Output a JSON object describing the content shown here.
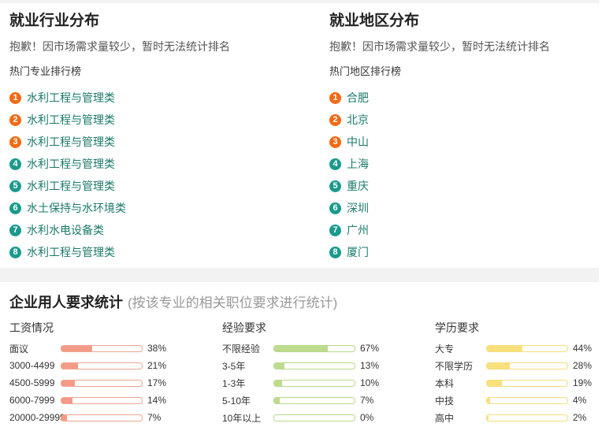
{
  "industry": {
    "title": "就业行业分布",
    "note": "抱歉！因市场需求量较少，暂时无法统计排名",
    "rank_title": "热门专业排行榜",
    "items": [
      {
        "num": "1",
        "label": "水利工程与管理类"
      },
      {
        "num": "2",
        "label": "水利工程与管理类"
      },
      {
        "num": "3",
        "label": "水利工程与管理类"
      },
      {
        "num": "4",
        "label": "水利工程与管理类"
      },
      {
        "num": "5",
        "label": "水利工程与管理类"
      },
      {
        "num": "6",
        "label": "水土保持与水环境类"
      },
      {
        "num": "7",
        "label": "水利水电设备类"
      },
      {
        "num": "8",
        "label": "水利工程与管理类"
      }
    ]
  },
  "region": {
    "title": "就业地区分布",
    "note": "抱歉！因市场需求量较少，暂时无法统计排名",
    "rank_title": "热门地区排行榜",
    "items": [
      {
        "num": "1",
        "label": "合肥"
      },
      {
        "num": "2",
        "label": "北京"
      },
      {
        "num": "3",
        "label": "中山"
      },
      {
        "num": "4",
        "label": "上海"
      },
      {
        "num": "5",
        "label": "重庆"
      },
      {
        "num": "6",
        "label": "深圳"
      },
      {
        "num": "7",
        "label": "广州"
      },
      {
        "num": "8",
        "label": "厦门"
      }
    ]
  },
  "colors": {
    "hot_rank": "#f26a13",
    "normal_rank": "#1a9a8c",
    "link": "#1b7a6a"
  },
  "requirements": {
    "title": "企业用人要求统计",
    "subtitle": "(按该专业的相关职位要求进行统计)",
    "salary": {
      "title": "工资情况",
      "rows": [
        {
          "label": "面议",
          "pct": "38%",
          "value": 38
        },
        {
          "label": "3000-4499",
          "pct": "21%",
          "value": 21
        },
        {
          "label": "4500-5999",
          "pct": "17%",
          "value": 17
        },
        {
          "label": "6000-7999",
          "pct": "14%",
          "value": 14
        },
        {
          "label": "20000-29999",
          "pct": "7%",
          "value": 7
        }
      ]
    },
    "experience": {
      "title": "经验要求",
      "rows": [
        {
          "label": "不限经验",
          "pct": "67%",
          "value": 67
        },
        {
          "label": "3-5年",
          "pct": "13%",
          "value": 13
        },
        {
          "label": "1-3年",
          "pct": "10%",
          "value": 10
        },
        {
          "label": "5-10年",
          "pct": "7%",
          "value": 7
        },
        {
          "label": "10年以上",
          "pct": "0%",
          "value": 0
        }
      ]
    },
    "education": {
      "title": "学历要求",
      "rows": [
        {
          "label": "大专",
          "pct": "44%",
          "value": 44
        },
        {
          "label": "不限学历",
          "pct": "28%",
          "value": 28
        },
        {
          "label": "本科",
          "pct": "19%",
          "value": 19
        },
        {
          "label": "中技",
          "pct": "4%",
          "value": 4
        },
        {
          "label": "高中",
          "pct": "2%",
          "value": 2
        }
      ]
    }
  }
}
